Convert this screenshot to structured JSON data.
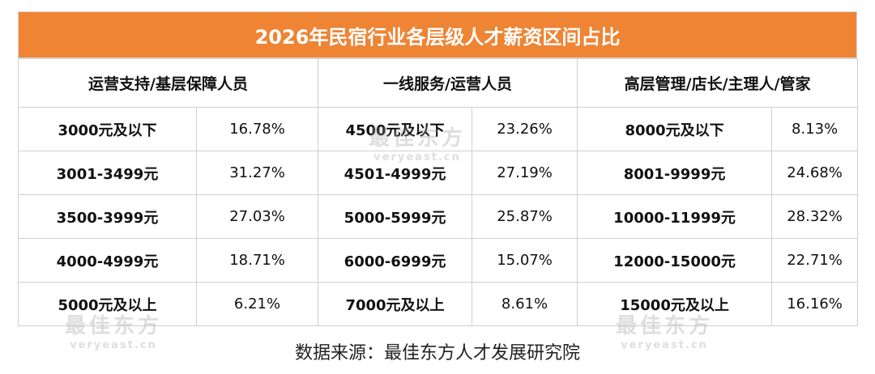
{
  "title": "2026年民宿行业各层级人才薪资区间占比",
  "groups": [
    {
      "header": "运营支持/基层保障人员",
      "rows": [
        {
          "range": "3000元及以下",
          "pct": "16.78%"
        },
        {
          "range": "3001-3499元",
          "pct": "31.27%"
        },
        {
          "range": "3500-3999元",
          "pct": "27.03%"
        },
        {
          "range": "4000-4999元",
          "pct": "18.71%"
        },
        {
          "range": "5000元及以上",
          "pct": "6.21%"
        }
      ]
    },
    {
      "header": "一线服务/运营人员",
      "rows": [
        {
          "range": "4500元及以下",
          "pct": "23.26%"
        },
        {
          "range": "4501-4999元",
          "pct": "27.19%"
        },
        {
          "range": "5000-5999元",
          "pct": "25.87%"
        },
        {
          "range": "6000-6999元",
          "pct": "15.07%"
        },
        {
          "range": "7000元及以上",
          "pct": "8.61%"
        }
      ]
    },
    {
      "header": "高层管理/店长/主理人/管家",
      "rows": [
        {
          "range": "8000元及以下",
          "pct": "8.13%"
        },
        {
          "range": "8001-9999元",
          "pct": "24.68%"
        },
        {
          "range": "10000-11999元",
          "pct": "28.32%"
        },
        {
          "range": "12000-15000元",
          "pct": "22.71%"
        },
        {
          "range": "15000元及以上",
          "pct": "16.16%"
        }
      ]
    }
  ],
  "source": "数据来源：最佳东方人才发展研究院",
  "watermark": {
    "cn": "最佳东方",
    "en": "veryeast.cn"
  },
  "colors": {
    "title_bg": "#ee8434",
    "title_text": "#ffffff"
  }
}
